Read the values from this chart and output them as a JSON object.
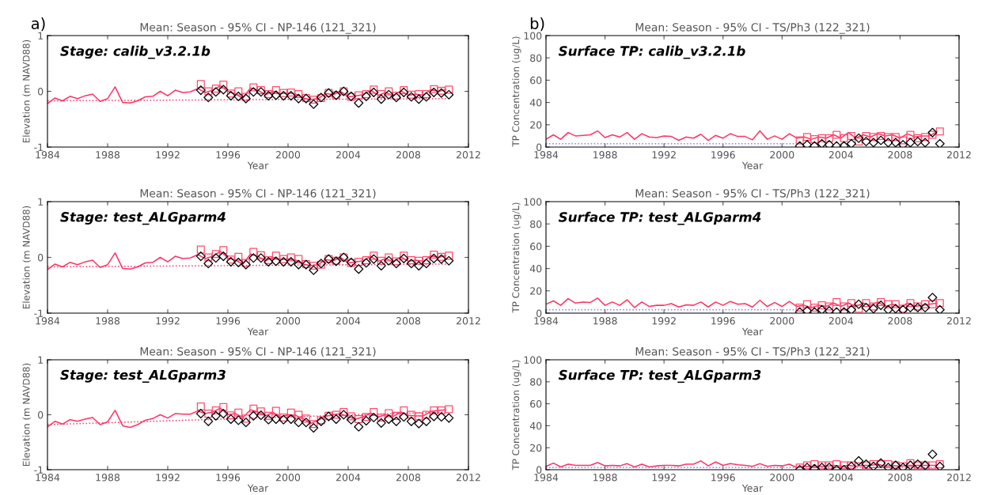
{
  "chart_data": [
    {
      "type": "line",
      "title": "Mean: Season - 95% CI - NP-146 (121_321)",
      "xlabel": "Year",
      "ylabel": "Elevation (m NAVD88)",
      "annotations": [
        "a)",
        "Stage: calib_v3.2.1b"
      ],
      "xlim": [
        1984,
        2012
      ],
      "ylim": [
        -1,
        1
      ],
      "xticks": [
        1984,
        1988,
        1992,
        1996,
        2000,
        2004,
        2008,
        2012
      ],
      "yticks": [
        -1,
        0,
        1
      ],
      "series": [
        {
          "type": "line",
          "color": "#ff3366",
          "marker": "none",
          "line_style": "solid",
          "x": [
            1984,
            1984.5,
            1985,
            1985.5,
            1986,
            1986.5,
            1987,
            1987.5,
            1988,
            1988.5,
            1989,
            1989.5,
            1990,
            1990.5,
            1991,
            1991.5,
            1992,
            1992.5,
            1993,
            1993.5,
            1994,
            1994.5,
            1995,
            1995.5,
            1996,
            1996.5,
            1997,
            1997.5,
            1998,
            1998.5,
            1999,
            1999.5,
            2000,
            2000.5,
            2001,
            2001.5,
            2002,
            2002.5,
            2003,
            2003.5,
            2004,
            2004.5,
            2005,
            2005.5,
            2006,
            2006.5,
            2007,
            2007.5,
            2008,
            2008.5,
            2009,
            2009.5,
            2010,
            2010.5
          ],
          "values": [
            -0.22,
            -0.12,
            -0.17,
            -0.09,
            -0.13,
            -0.08,
            -0.05,
            -0.18,
            -0.13,
            0.08,
            -0.2,
            -0.21,
            -0.17,
            -0.1,
            -0.09,
            0.0,
            -0.08,
            0.02,
            -0.02,
            -0.01,
            0.05,
            -0.02,
            0.02,
            0.1,
            0.0,
            -0.05,
            -0.12,
            0.06,
            0.02,
            -0.06,
            0.0,
            -0.04,
            -0.03,
            -0.05,
            -0.12,
            -0.15,
            -0.13,
            -0.04,
            -0.06,
            0.0,
            -0.1,
            -0.08,
            -0.06,
            0.02,
            -0.07,
            -0.02,
            -0.08,
            0.01,
            -0.07,
            -0.05,
            -0.07,
            0.03,
            0.0,
            0.03
          ]
        },
        {
          "type": "line",
          "color": "#ff3366",
          "marker": "none",
          "line_style": "dotted",
          "x": [
            1984,
            2010.5
          ],
          "values": [
            -0.17,
            -0.13
          ]
        },
        {
          "type": "scatter",
          "color": "#ff4d6d",
          "marker": "square",
          "x": [
            1994.2,
            1994.7,
            1995.2,
            1995.7,
            1996.2,
            1996.7,
            1997.2,
            1997.7,
            1998.2,
            1998.7,
            1999.2,
            1999.7,
            2000.2,
            2000.7,
            2001.2,
            2001.7,
            2002.2,
            2002.7,
            2003.2,
            2003.7,
            2004.2,
            2004.7,
            2005.2,
            2005.7,
            2006.2,
            2006.7,
            2007.2,
            2007.7,
            2008.2,
            2008.7,
            2009.2,
            2009.7,
            2010.2,
            2010.7
          ],
          "values": [
            0.13,
            0.0,
            0.05,
            0.12,
            -0.04,
            0.0,
            -0.1,
            0.07,
            0.02,
            -0.05,
            0.02,
            -0.03,
            -0.02,
            -0.05,
            -0.12,
            -0.15,
            -0.12,
            -0.03,
            -0.07,
            0.0,
            -0.1,
            -0.07,
            -0.05,
            0.03,
            -0.05,
            0.0,
            -0.08,
            0.02,
            -0.06,
            -0.05,
            -0.05,
            0.04,
            0.01,
            0.03
          ]
        },
        {
          "type": "scatter",
          "color": "#000000",
          "marker": "diamond",
          "x": [
            1994.2,
            1994.7,
            1995.2,
            1995.7,
            1996.2,
            1996.7,
            1997.2,
            1997.7,
            1998.2,
            1998.7,
            1999.2,
            1999.7,
            2000.2,
            2000.7,
            2001.2,
            2001.7,
            2002.2,
            2002.7,
            2003.2,
            2003.7,
            2004.2,
            2004.7,
            2005.2,
            2005.7,
            2006.2,
            2006.7,
            2007.2,
            2007.7,
            2008.2,
            2008.7,
            2009.2,
            2009.7,
            2010.2,
            2010.7
          ],
          "values": [
            0.02,
            -0.11,
            -0.01,
            0.03,
            -0.08,
            -0.09,
            -0.13,
            -0.01,
            -0.01,
            -0.08,
            -0.07,
            -0.08,
            -0.08,
            -0.13,
            -0.13,
            -0.23,
            -0.11,
            -0.03,
            -0.07,
            0.0,
            -0.09,
            -0.21,
            -0.09,
            -0.02,
            -0.14,
            -0.06,
            -0.11,
            -0.02,
            -0.1,
            -0.14,
            -0.1,
            -0.02,
            -0.03,
            -0.06
          ]
        }
      ]
    },
    {
      "type": "line",
      "title": "Mean: Season - 95% CI - TS/Ph3 (122_321)",
      "xlabel": "Year",
      "ylabel": "TP Concentration (ug/L)",
      "annotations": [
        "b)",
        "Surface TP: calib_v3.2.1b"
      ],
      "xlim": [
        1984,
        2012
      ],
      "ylim": [
        0,
        100
      ],
      "xticks": [
        1984,
        1988,
        1992,
        1996,
        2000,
        2004,
        2008,
        2012
      ],
      "yticks": [
        0,
        20,
        40,
        60,
        80,
        100
      ],
      "series": [
        {
          "type": "line",
          "color": "#ff3366",
          "marker": "none",
          "line_style": "solid",
          "x": [
            1984,
            1984.5,
            1985,
            1985.5,
            1986,
            1986.5,
            1987,
            1987.5,
            1988,
            1988.5,
            1989,
            1989.5,
            1990,
            1990.5,
            1991,
            1991.5,
            1992,
            1992.5,
            1993,
            1993.5,
            1994,
            1994.5,
            1995,
            1995.5,
            1996,
            1996.5,
            1997,
            1997.5,
            1998,
            1998.5,
            1999,
            1999.5,
            2000,
            2000.5,
            2001,
            2001.5,
            2002,
            2002.5,
            2003,
            2003.5,
            2004,
            2004.5,
            2005,
            2005.5,
            2006,
            2006.5,
            2007,
            2007.5,
            2008,
            2008.5,
            2009,
            2009.5,
            2010,
            2010.5
          ],
          "values": [
            7,
            11,
            7,
            13,
            10,
            10.5,
            11,
            14.5,
            8.5,
            11,
            9,
            13,
            7,
            12,
            9,
            8.5,
            10,
            9.5,
            6,
            9,
            8,
            11.5,
            6,
            10.5,
            8,
            12,
            9.5,
            9.5,
            6.5,
            14.5,
            7,
            10,
            7,
            12,
            8,
            9,
            7,
            9,
            8,
            11,
            8,
            13,
            8,
            11,
            9,
            12,
            10,
            11,
            8,
            12,
            9,
            10,
            10,
            14
          ]
        },
        {
          "type": "line",
          "color": "#8080ff",
          "marker": "none",
          "line_style": "dotted",
          "x": [
            1984,
            2001
          ],
          "values": [
            3,
            3
          ]
        },
        {
          "type": "scatter",
          "color": "#ff4d6d",
          "marker": "square",
          "x": [
            2001.2,
            2001.7,
            2002.2,
            2002.7,
            2003.2,
            2003.7,
            2004.2,
            2004.7,
            2005.2,
            2005.7,
            2006.2,
            2006.7,
            2007.2,
            2007.7,
            2008.2,
            2008.7,
            2009.2,
            2009.7,
            2010.2,
            2010.7
          ],
          "values": [
            6,
            9,
            7,
            8,
            8,
            11,
            8,
            10,
            5,
            10,
            9,
            10,
            9,
            9,
            6,
            11,
            8,
            9,
            11,
            14
          ]
        },
        {
          "type": "scatter",
          "color": "#000000",
          "marker": "diamond",
          "x": [
            2001.2,
            2001.7,
            2002.2,
            2002.7,
            2003.2,
            2003.7,
            2004.2,
            2004.7,
            2005.2,
            2005.7,
            2006.2,
            2006.7,
            2007.2,
            2007.7,
            2008.2,
            2008.7,
            2009.2,
            2009.7,
            2010.2,
            2010.7
          ],
          "values": [
            1,
            2,
            1,
            3,
            2,
            1,
            1,
            3,
            8,
            5,
            4,
            6,
            4,
            4,
            2,
            4,
            5,
            4,
            13,
            3
          ]
        }
      ]
    },
    {
      "type": "line",
      "title": "Mean: Season - 95% CI - NP-146 (121_321)",
      "xlabel": "Year",
      "ylabel": "Elevation (m NAVD88)",
      "annotations": [
        "Stage: test_ALGparm4"
      ],
      "xlim": [
        1984,
        2012
      ],
      "ylim": [
        -1,
        1
      ],
      "xticks": [
        1984,
        1988,
        1992,
        1996,
        2000,
        2004,
        2008,
        2012
      ],
      "yticks": [
        -1,
        0,
        1
      ],
      "series": [
        {
          "type": "line",
          "color": "#ff3366",
          "marker": "none",
          "line_style": "solid",
          "x": [
            1984,
            1984.5,
            1985,
            1985.5,
            1986,
            1986.5,
            1987,
            1987.5,
            1988,
            1988.5,
            1989,
            1989.5,
            1990,
            1990.5,
            1991,
            1991.5,
            1992,
            1992.5,
            1993,
            1993.5,
            1994,
            1994.5,
            1995,
            1995.5,
            1996,
            1996.5,
            1997,
            1997.5,
            1998,
            1998.5,
            1999,
            1999.5,
            2000,
            2000.5,
            2001,
            2001.5,
            2002,
            2002.5,
            2003,
            2003.5,
            2004,
            2004.5,
            2005,
            2005.5,
            2006,
            2006.5,
            2007,
            2007.5,
            2008,
            2008.5,
            2009,
            2009.5,
            2010,
            2010.5
          ],
          "values": [
            -0.22,
            -0.12,
            -0.17,
            -0.09,
            -0.13,
            -0.08,
            -0.05,
            -0.18,
            -0.13,
            0.08,
            -0.2,
            -0.21,
            -0.17,
            -0.1,
            -0.09,
            0.0,
            -0.08,
            0.02,
            -0.02,
            -0.01,
            0.05,
            -0.02,
            0.02,
            0.11,
            -0.01,
            -0.05,
            -0.12,
            0.06,
            0.02,
            -0.06,
            0.0,
            -0.04,
            -0.03,
            -0.05,
            -0.12,
            -0.15,
            -0.13,
            -0.04,
            -0.06,
            0.0,
            -0.1,
            -0.08,
            -0.06,
            0.02,
            -0.07,
            -0.02,
            -0.08,
            0.01,
            -0.07,
            -0.05,
            -0.07,
            0.03,
            0.0,
            0.03
          ]
        },
        {
          "type": "line",
          "color": "#ff3366",
          "marker": "none",
          "line_style": "dotted",
          "x": [
            1984,
            2010.5
          ],
          "values": [
            -0.17,
            -0.12
          ]
        },
        {
          "type": "scatter",
          "color": "#ff4d6d",
          "marker": "square",
          "x": [
            1994.2,
            1994.7,
            1995.2,
            1995.7,
            1996.2,
            1996.7,
            1997.2,
            1997.7,
            1998.2,
            1998.7,
            1999.2,
            1999.7,
            2000.2,
            2000.7,
            2001.2,
            2001.7,
            2002.2,
            2002.7,
            2003.2,
            2003.7,
            2004.2,
            2004.7,
            2005.2,
            2005.7,
            2006.2,
            2006.7,
            2007.2,
            2007.7,
            2008.2,
            2008.7,
            2009.2,
            2009.7,
            2010.2,
            2010.7
          ],
          "values": [
            0.14,
            0.0,
            0.06,
            0.13,
            -0.04,
            0.01,
            -0.1,
            0.1,
            0.04,
            -0.05,
            0.03,
            -0.03,
            0.0,
            -0.03,
            -0.12,
            -0.15,
            -0.13,
            -0.03,
            -0.06,
            0.0,
            -0.1,
            -0.08,
            -0.05,
            0.03,
            -0.06,
            0.0,
            -0.07,
            0.03,
            -0.05,
            -0.06,
            -0.05,
            0.05,
            0.01,
            0.03
          ]
        },
        {
          "type": "scatter",
          "color": "#000000",
          "marker": "diamond",
          "x": [
            1994.2,
            1994.7,
            1995.2,
            1995.7,
            1996.2,
            1996.7,
            1997.2,
            1997.7,
            1998.2,
            1998.7,
            1999.2,
            1999.7,
            2000.2,
            2000.7,
            2001.2,
            2001.7,
            2002.2,
            2002.7,
            2003.2,
            2003.7,
            2004.2,
            2004.7,
            2005.2,
            2005.7,
            2006.2,
            2006.7,
            2007.2,
            2007.7,
            2008.2,
            2008.7,
            2009.2,
            2009.7,
            2010.2,
            2010.7
          ],
          "values": [
            0.02,
            -0.11,
            -0.01,
            0.02,
            -0.08,
            -0.09,
            -0.13,
            -0.01,
            -0.01,
            -0.08,
            -0.07,
            -0.08,
            -0.08,
            -0.13,
            -0.13,
            -0.23,
            -0.11,
            -0.03,
            -0.07,
            0.0,
            -0.09,
            -0.21,
            -0.1,
            -0.03,
            -0.15,
            -0.06,
            -0.11,
            -0.02,
            -0.11,
            -0.15,
            -0.11,
            -0.02,
            -0.03,
            -0.06
          ]
        }
      ]
    },
    {
      "type": "line",
      "title": "Mean: Season - 95% CI - TS/Ph3 (122_321)",
      "xlabel": "Year",
      "ylabel": "TP Concentration (ug/L)",
      "annotations": [
        "Surface TP: test_ALGparm4"
      ],
      "xlim": [
        1984,
        2012
      ],
      "ylim": [
        0,
        100
      ],
      "xticks": [
        1984,
        1988,
        1992,
        1996,
        2000,
        2004,
        2008,
        2012
      ],
      "yticks": [
        0,
        20,
        40,
        60,
        80,
        100
      ],
      "series": [
        {
          "type": "line",
          "color": "#ff3366",
          "marker": "none",
          "line_style": "solid",
          "x": [
            1984,
            1984.5,
            1985,
            1985.5,
            1986,
            1986.5,
            1987,
            1987.5,
            1988,
            1988.5,
            1989,
            1989.5,
            1990,
            1990.5,
            1991,
            1991.5,
            1992,
            1992.5,
            1993,
            1993.5,
            1994,
            1994.5,
            1995,
            1995.5,
            1996,
            1996.5,
            1997,
            1997.5,
            1998,
            1998.5,
            1999,
            1999.5,
            2000,
            2000.5,
            2001,
            2001.5,
            2002,
            2002.5,
            2003,
            2003.5,
            2004,
            2004.5,
            2005,
            2005.5,
            2006,
            2006.5,
            2007,
            2007.5,
            2008,
            2008.5,
            2009,
            2009.5,
            2010,
            2010.5
          ],
          "values": [
            8,
            11,
            7,
            13,
            9,
            10,
            9.5,
            13.5,
            7,
            10,
            7,
            12,
            5,
            10,
            6,
            7,
            7,
            8.5,
            5.5,
            7.5,
            7,
            10,
            5.5,
            10,
            7,
            10.5,
            8,
            8.5,
            5.5,
            11.5,
            6,
            9.5,
            6,
            10.5,
            6,
            7,
            5,
            7,
            6,
            9,
            6,
            9,
            6,
            9,
            7,
            10,
            6,
            8,
            5,
            9,
            6,
            7,
            8,
            9
          ]
        },
        {
          "type": "line",
          "color": "#8080ff",
          "marker": "none",
          "line_style": "dotted",
          "x": [
            1984,
            2001
          ],
          "values": [
            3,
            3
          ]
        },
        {
          "type": "scatter",
          "color": "#ff4d6d",
          "marker": "square",
          "x": [
            2001.2,
            2001.7,
            2002.2,
            2002.7,
            2003.2,
            2003.7,
            2004.2,
            2004.7,
            2005.2,
            2005.7,
            2006.2,
            2006.7,
            2007.2,
            2007.7,
            2008.2,
            2008.7,
            2009.2,
            2009.7,
            2010.2,
            2010.7
          ],
          "values": [
            5,
            8,
            5,
            7,
            6,
            10,
            6,
            9,
            4,
            9,
            6,
            10,
            8,
            8,
            4,
            9,
            6,
            8,
            8,
            9
          ]
        },
        {
          "type": "scatter",
          "color": "#000000",
          "marker": "diamond",
          "x": [
            2001.2,
            2001.7,
            2002.2,
            2002.7,
            2003.2,
            2003.7,
            2004.2,
            2004.7,
            2005.2,
            2005.7,
            2006.2,
            2006.7,
            2007.2,
            2007.7,
            2008.2,
            2008.7,
            2009.2,
            2009.7,
            2010.2,
            2010.7
          ],
          "values": [
            1,
            2,
            1,
            3,
            2,
            1,
            1,
            3,
            8,
            5,
            4,
            7,
            3,
            4,
            3,
            5,
            5,
            5,
            14,
            3
          ]
        }
      ]
    },
    {
      "type": "line",
      "title": "Mean: Season - 95% CI - NP-146 (121_321)",
      "xlabel": "Year",
      "ylabel": "Elevation (m NAVD88)",
      "annotations": [
        "Stage: test_ALGparm3"
      ],
      "xlim": [
        1984,
        2012
      ],
      "ylim": [
        -1,
        1
      ],
      "xticks": [
        1984,
        1988,
        1992,
        1996,
        2000,
        2004,
        2008,
        2012
      ],
      "yticks": [
        -1,
        0,
        1
      ],
      "series": [
        {
          "type": "line",
          "color": "#ff3366",
          "marker": "none",
          "line_style": "solid",
          "x": [
            1984,
            1984.5,
            1985,
            1985.5,
            1986,
            1986.5,
            1987,
            1987.5,
            1988,
            1988.5,
            1989,
            1989.5,
            1990,
            1990.5,
            1991,
            1991.5,
            1992,
            1992.5,
            1993,
            1993.5,
            1994,
            1994.5,
            1995,
            1995.5,
            1996,
            1996.5,
            1997,
            1997.5,
            1998,
            1998.5,
            1999,
            1999.5,
            2000,
            2000.5,
            2001,
            2001.5,
            2002,
            2002.5,
            2003,
            2003.5,
            2004,
            2004.5,
            2005,
            2005.5,
            2006,
            2006.5,
            2007,
            2007.5,
            2008,
            2008.5,
            2009,
            2009.5,
            2010,
            2010.5
          ],
          "values": [
            -0.22,
            -0.12,
            -0.17,
            -0.09,
            -0.12,
            -0.08,
            -0.05,
            -0.18,
            -0.13,
            0.08,
            -0.2,
            -0.23,
            -0.18,
            -0.1,
            -0.07,
            0.0,
            -0.06,
            0.02,
            0.01,
            0.01,
            0.07,
            0.02,
            0.05,
            0.12,
            0.0,
            0.02,
            -0.05,
            0.09,
            0.05,
            -0.02,
            0.04,
            -0.04,
            0.0,
            -0.01,
            -0.07,
            -0.16,
            -0.1,
            -0.03,
            0.0,
            0.02,
            -0.04,
            -0.08,
            -0.04,
            0.03,
            -0.04,
            0.0,
            -0.03,
            0.05,
            -0.01,
            -0.02,
            -0.02,
            0.06,
            0.08,
            0.09
          ]
        },
        {
          "type": "line",
          "color": "#ff3366",
          "marker": "none",
          "line_style": "dotted",
          "x": [
            1984,
            2010.5
          ],
          "values": [
            -0.18,
            0.05
          ]
        },
        {
          "type": "scatter",
          "color": "#ff4d6d",
          "marker": "square",
          "x": [
            1994.2,
            1994.7,
            1995.2,
            1995.7,
            1996.2,
            1996.7,
            1997.2,
            1997.7,
            1998.2,
            1998.7,
            1999.2,
            1999.7,
            2000.2,
            2000.7,
            2001.2,
            2001.7,
            2002.2,
            2002.7,
            2003.2,
            2003.7,
            2004.2,
            2004.7,
            2005.2,
            2005.7,
            2006.2,
            2006.7,
            2007.2,
            2007.7,
            2008.2,
            2008.7,
            2009.2,
            2009.7,
            2010.2,
            2010.7
          ],
          "values": [
            0.15,
            0.02,
            0.08,
            0.14,
            -0.01,
            0.04,
            -0.07,
            0.11,
            0.06,
            -0.02,
            0.07,
            -0.05,
            0.04,
            0.0,
            -0.07,
            -0.17,
            -0.1,
            -0.02,
            0.0,
            0.05,
            -0.03,
            -0.08,
            -0.04,
            0.05,
            -0.05,
            0.03,
            -0.02,
            0.08,
            0.0,
            -0.03,
            0.0,
            0.08,
            0.08,
            0.1
          ]
        },
        {
          "type": "scatter",
          "color": "#000000",
          "marker": "diamond",
          "x": [
            1994.2,
            1994.7,
            1995.2,
            1995.7,
            1996.2,
            1996.7,
            1997.2,
            1997.7,
            1998.2,
            1998.7,
            1999.2,
            1999.7,
            2000.2,
            2000.7,
            2001.2,
            2001.7,
            2002.2,
            2002.7,
            2003.2,
            2003.7,
            2004.2,
            2004.7,
            2005.2,
            2005.7,
            2006.2,
            2006.7,
            2007.2,
            2007.7,
            2008.2,
            2008.7,
            2009.2,
            2009.7,
            2010.2,
            2010.7
          ],
          "values": [
            0.02,
            -0.12,
            -0.02,
            0.02,
            -0.08,
            -0.1,
            -0.14,
            -0.02,
            -0.01,
            -0.09,
            -0.08,
            -0.09,
            -0.08,
            -0.14,
            -0.14,
            -0.24,
            -0.12,
            -0.03,
            -0.08,
            0.0,
            -0.09,
            -0.22,
            -0.11,
            -0.05,
            -0.15,
            -0.08,
            -0.12,
            -0.04,
            -0.12,
            -0.16,
            -0.12,
            -0.03,
            -0.04,
            -0.06
          ]
        }
      ]
    },
    {
      "type": "line",
      "title": "Mean: Season - 95% CI - TS/Ph3 (122_321)",
      "xlabel": "Year",
      "ylabel": "TP Concentration (ug/L)",
      "annotations": [
        "Surface TP: test_ALGparm3"
      ],
      "xlim": [
        1984,
        2012
      ],
      "ylim": [
        0,
        100
      ],
      "xticks": [
        1984,
        1988,
        1992,
        1996,
        2000,
        2004,
        2008,
        2012
      ],
      "yticks": [
        0,
        20,
        40,
        60,
        80,
        100
      ],
      "series": [
        {
          "type": "line",
          "color": "#ff3366",
          "marker": "none",
          "line_style": "solid",
          "x": [
            1984,
            1984.5,
            1985,
            1985.5,
            1986,
            1986.5,
            1987,
            1987.5,
            1988,
            1988.5,
            1989,
            1989.5,
            1990,
            1990.5,
            1991,
            1991.5,
            1992,
            1992.5,
            1993,
            1993.5,
            1994,
            1994.5,
            1995,
            1995.5,
            1996,
            1996.5,
            1997,
            1997.5,
            1998,
            1998.5,
            1999,
            1999.5,
            2000,
            2000.5,
            2001,
            2001.5,
            2002,
            2002.5,
            2003,
            2003.5,
            2004,
            2004.5,
            2005,
            2005.5,
            2006,
            2006.5,
            2007,
            2007.5,
            2008,
            2008.5,
            2009,
            2009.5,
            2010,
            2010.5
          ],
          "values": [
            3,
            6,
            2.5,
            5,
            4,
            4,
            4,
            6.5,
            3.5,
            4,
            3.5,
            5.5,
            2.5,
            5,
            2.5,
            3.5,
            4,
            4,
            3.5,
            5,
            5,
            8,
            3.5,
            7,
            4,
            5.5,
            4.5,
            4,
            3,
            5.5,
            3,
            4,
            3.5,
            5,
            2,
            3,
            3,
            3,
            3,
            4,
            3,
            4,
            3,
            4,
            4,
            5,
            3,
            4,
            3,
            4,
            4,
            4,
            4,
            4
          ]
        },
        {
          "type": "line",
          "color": "#8080ff",
          "marker": "none",
          "line_style": "dotted",
          "x": [
            1984,
            2010.7
          ],
          "values": [
            2,
            2
          ]
        },
        {
          "type": "scatter",
          "color": "#ff4d6d",
          "marker": "square",
          "x": [
            2001.2,
            2001.7,
            2002.2,
            2002.7,
            2003.2,
            2003.7,
            2004.2,
            2004.7,
            2005.2,
            2005.7,
            2006.2,
            2006.7,
            2007.2,
            2007.7,
            2008.2,
            2008.7,
            2009.2,
            2009.7,
            2010.2,
            2010.7
          ],
          "values": [
            2,
            4,
            5,
            4,
            4,
            5,
            4,
            4,
            3,
            4,
            5,
            5,
            5,
            4,
            3,
            6,
            4,
            4,
            4,
            5
          ]
        },
        {
          "type": "scatter",
          "color": "#000000",
          "marker": "diamond",
          "x": [
            2001.2,
            2001.7,
            2002.2,
            2002.7,
            2003.2,
            2003.7,
            2004.2,
            2004.7,
            2005.2,
            2005.7,
            2006.2,
            2006.7,
            2007.2,
            2007.7,
            2008.2,
            2008.7,
            2009.2,
            2009.7,
            2010.2,
            2010.7
          ],
          "values": [
            0,
            2,
            1,
            2,
            2,
            0,
            0,
            3,
            8,
            5,
            3,
            6,
            2,
            4,
            2,
            4,
            5,
            4,
            14,
            3
          ]
        }
      ]
    }
  ]
}
